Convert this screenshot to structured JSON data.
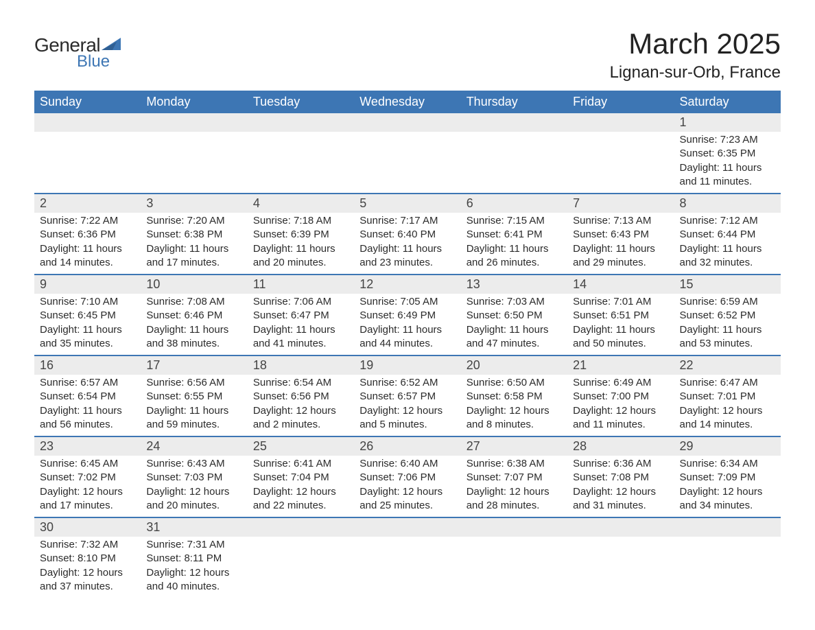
{
  "logo": {
    "word1": "General",
    "word2": "Blue",
    "text_color": "#2b2b2b",
    "accent_color": "#3d76b4"
  },
  "title": "March 2025",
  "location": "Lignan-sur-Orb, France",
  "colors": {
    "header_bg": "#3d76b4",
    "header_text": "#ffffff",
    "daynum_bg": "#ececec",
    "border": "#3d76b4",
    "body_text": "#2b2b2b"
  },
  "columns": [
    "Sunday",
    "Monday",
    "Tuesday",
    "Wednesday",
    "Thursday",
    "Friday",
    "Saturday"
  ],
  "weeks": [
    [
      null,
      null,
      null,
      null,
      null,
      null,
      {
        "n": "1",
        "sunrise": "7:23 AM",
        "sunset": "6:35 PM",
        "daylight": "11 hours and 11 minutes."
      }
    ],
    [
      {
        "n": "2",
        "sunrise": "7:22 AM",
        "sunset": "6:36 PM",
        "daylight": "11 hours and 14 minutes."
      },
      {
        "n": "3",
        "sunrise": "7:20 AM",
        "sunset": "6:38 PM",
        "daylight": "11 hours and 17 minutes."
      },
      {
        "n": "4",
        "sunrise": "7:18 AM",
        "sunset": "6:39 PM",
        "daylight": "11 hours and 20 minutes."
      },
      {
        "n": "5",
        "sunrise": "7:17 AM",
        "sunset": "6:40 PM",
        "daylight": "11 hours and 23 minutes."
      },
      {
        "n": "6",
        "sunrise": "7:15 AM",
        "sunset": "6:41 PM",
        "daylight": "11 hours and 26 minutes."
      },
      {
        "n": "7",
        "sunrise": "7:13 AM",
        "sunset": "6:43 PM",
        "daylight": "11 hours and 29 minutes."
      },
      {
        "n": "8",
        "sunrise": "7:12 AM",
        "sunset": "6:44 PM",
        "daylight": "11 hours and 32 minutes."
      }
    ],
    [
      {
        "n": "9",
        "sunrise": "7:10 AM",
        "sunset": "6:45 PM",
        "daylight": "11 hours and 35 minutes."
      },
      {
        "n": "10",
        "sunrise": "7:08 AM",
        "sunset": "6:46 PM",
        "daylight": "11 hours and 38 minutes."
      },
      {
        "n": "11",
        "sunrise": "7:06 AM",
        "sunset": "6:47 PM",
        "daylight": "11 hours and 41 minutes."
      },
      {
        "n": "12",
        "sunrise": "7:05 AM",
        "sunset": "6:49 PM",
        "daylight": "11 hours and 44 minutes."
      },
      {
        "n": "13",
        "sunrise": "7:03 AM",
        "sunset": "6:50 PM",
        "daylight": "11 hours and 47 minutes."
      },
      {
        "n": "14",
        "sunrise": "7:01 AM",
        "sunset": "6:51 PM",
        "daylight": "11 hours and 50 minutes."
      },
      {
        "n": "15",
        "sunrise": "6:59 AM",
        "sunset": "6:52 PM",
        "daylight": "11 hours and 53 minutes."
      }
    ],
    [
      {
        "n": "16",
        "sunrise": "6:57 AM",
        "sunset": "6:54 PM",
        "daylight": "11 hours and 56 minutes."
      },
      {
        "n": "17",
        "sunrise": "6:56 AM",
        "sunset": "6:55 PM",
        "daylight": "11 hours and 59 minutes."
      },
      {
        "n": "18",
        "sunrise": "6:54 AM",
        "sunset": "6:56 PM",
        "daylight": "12 hours and 2 minutes."
      },
      {
        "n": "19",
        "sunrise": "6:52 AM",
        "sunset": "6:57 PM",
        "daylight": "12 hours and 5 minutes."
      },
      {
        "n": "20",
        "sunrise": "6:50 AM",
        "sunset": "6:58 PM",
        "daylight": "12 hours and 8 minutes."
      },
      {
        "n": "21",
        "sunrise": "6:49 AM",
        "sunset": "7:00 PM",
        "daylight": "12 hours and 11 minutes."
      },
      {
        "n": "22",
        "sunrise": "6:47 AM",
        "sunset": "7:01 PM",
        "daylight": "12 hours and 14 minutes."
      }
    ],
    [
      {
        "n": "23",
        "sunrise": "6:45 AM",
        "sunset": "7:02 PM",
        "daylight": "12 hours and 17 minutes."
      },
      {
        "n": "24",
        "sunrise": "6:43 AM",
        "sunset": "7:03 PM",
        "daylight": "12 hours and 20 minutes."
      },
      {
        "n": "25",
        "sunrise": "6:41 AM",
        "sunset": "7:04 PM",
        "daylight": "12 hours and 22 minutes."
      },
      {
        "n": "26",
        "sunrise": "6:40 AM",
        "sunset": "7:06 PM",
        "daylight": "12 hours and 25 minutes."
      },
      {
        "n": "27",
        "sunrise": "6:38 AM",
        "sunset": "7:07 PM",
        "daylight": "12 hours and 28 minutes."
      },
      {
        "n": "28",
        "sunrise": "6:36 AM",
        "sunset": "7:08 PM",
        "daylight": "12 hours and 31 minutes."
      },
      {
        "n": "29",
        "sunrise": "6:34 AM",
        "sunset": "7:09 PM",
        "daylight": "12 hours and 34 minutes."
      }
    ],
    [
      {
        "n": "30",
        "sunrise": "7:32 AM",
        "sunset": "8:10 PM",
        "daylight": "12 hours and 37 minutes."
      },
      {
        "n": "31",
        "sunrise": "7:31 AM",
        "sunset": "8:11 PM",
        "daylight": "12 hours and 40 minutes."
      },
      null,
      null,
      null,
      null,
      null
    ]
  ],
  "labels": {
    "sunrise": "Sunrise: ",
    "sunset": "Sunset: ",
    "daylight": "Daylight: "
  }
}
